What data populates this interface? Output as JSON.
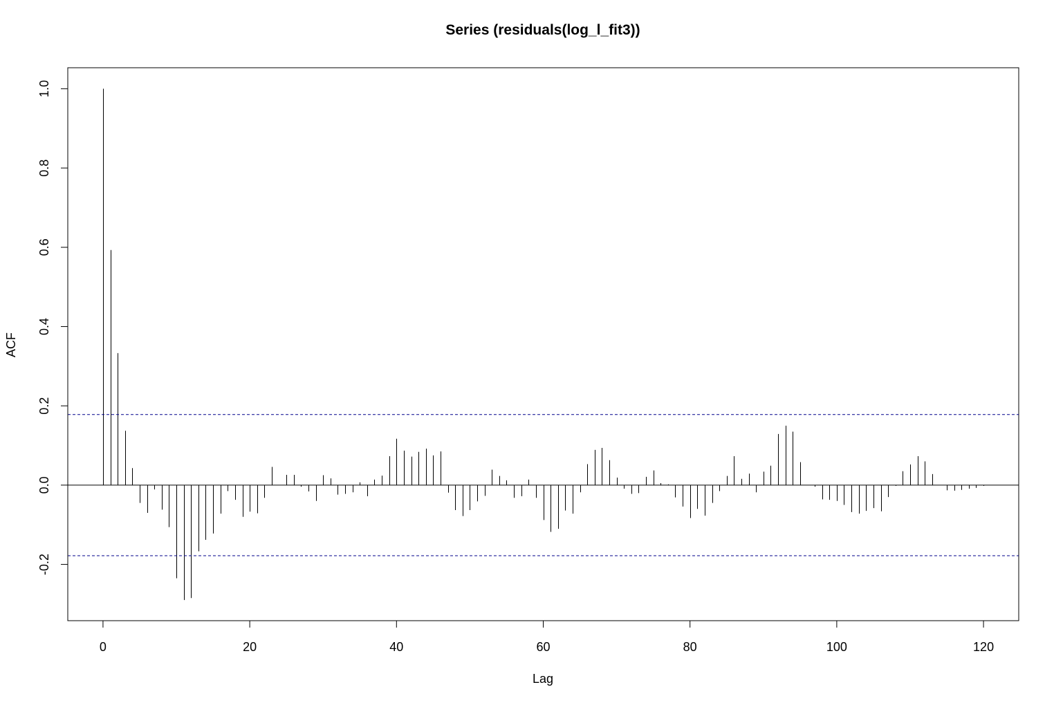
{
  "chart_data": {
    "type": "bar",
    "title": "Series  (residuals(log_l_fit3))",
    "xlabel": "Lag",
    "ylabel": "ACF",
    "xlim": [
      -4.8,
      124.8
    ],
    "ylim": [
      -0.342,
      1.053
    ],
    "x_ticks": [
      0,
      20,
      40,
      60,
      80,
      100,
      120
    ],
    "y_ticks": [
      -0.2,
      0.0,
      0.2,
      0.4,
      0.6,
      0.8,
      1.0
    ],
    "y_tick_labels": [
      "-0.2",
      "0.0",
      "0.2",
      "0.4",
      "0.6",
      "0.8",
      "1.0"
    ],
    "confidence_bound": 0.178,
    "bound_color": "#00008B",
    "bar_color": "#000000",
    "grid": false,
    "x": [
      0,
      1,
      2,
      3,
      4,
      5,
      6,
      7,
      8,
      9,
      10,
      11,
      12,
      13,
      14,
      15,
      16,
      17,
      18,
      19,
      20,
      21,
      22,
      23,
      24,
      25,
      26,
      27,
      28,
      29,
      30,
      31,
      32,
      33,
      34,
      35,
      36,
      37,
      38,
      39,
      40,
      41,
      42,
      43,
      44,
      45,
      46,
      47,
      48,
      49,
      50,
      51,
      52,
      53,
      54,
      55,
      56,
      57,
      58,
      59,
      60,
      61,
      62,
      63,
      64,
      65,
      66,
      67,
      68,
      69,
      70,
      71,
      72,
      73,
      74,
      75,
      76,
      77,
      78,
      79,
      80,
      81,
      82,
      83,
      84,
      85,
      86,
      87,
      88,
      89,
      90,
      91,
      92,
      93,
      94,
      95,
      96,
      97,
      98,
      99,
      100,
      101,
      102,
      103,
      104,
      105,
      106,
      107,
      108,
      109,
      110,
      111,
      112,
      113,
      114,
      115,
      116,
      117,
      118,
      119,
      120
    ],
    "values": [
      1.0,
      0.593,
      0.333,
      0.137,
      0.043,
      -0.045,
      -0.07,
      -0.011,
      -0.062,
      -0.106,
      -0.235,
      -0.29,
      -0.285,
      -0.167,
      -0.138,
      -0.122,
      -0.072,
      -0.015,
      -0.037,
      -0.08,
      -0.067,
      -0.071,
      -0.032,
      0.046,
      0.0,
      0.026,
      0.026,
      -0.004,
      -0.016,
      -0.04,
      0.025,
      0.017,
      -0.024,
      -0.022,
      -0.018,
      0.007,
      -0.028,
      0.014,
      0.024,
      0.073,
      0.117,
      0.087,
      0.072,
      0.084,
      0.092,
      0.075,
      0.085,
      -0.019,
      -0.063,
      -0.078,
      -0.063,
      -0.041,
      -0.027,
      0.039,
      0.023,
      0.012,
      -0.032,
      -0.028,
      0.014,
      -0.032,
      -0.088,
      -0.118,
      -0.11,
      -0.064,
      -0.072,
      -0.018,
      0.053,
      0.089,
      0.094,
      0.063,
      0.019,
      -0.009,
      -0.022,
      -0.02,
      0.021,
      0.037,
      0.005,
      0.002,
      -0.031,
      -0.054,
      -0.083,
      -0.06,
      -0.077,
      -0.045,
      -0.015,
      0.023,
      0.073,
      0.016,
      0.029,
      -0.018,
      0.034,
      0.049,
      0.129,
      0.15,
      0.135,
      0.058,
      0.0,
      -0.004,
      -0.036,
      -0.037,
      -0.04,
      -0.05,
      -0.068,
      -0.072,
      -0.065,
      -0.058,
      -0.066,
      -0.03,
      -0.002,
      0.035,
      0.052,
      0.073,
      0.06,
      0.028,
      0.0,
      -0.013,
      -0.014,
      -0.012,
      -0.009,
      -0.007,
      -0.002
    ]
  }
}
